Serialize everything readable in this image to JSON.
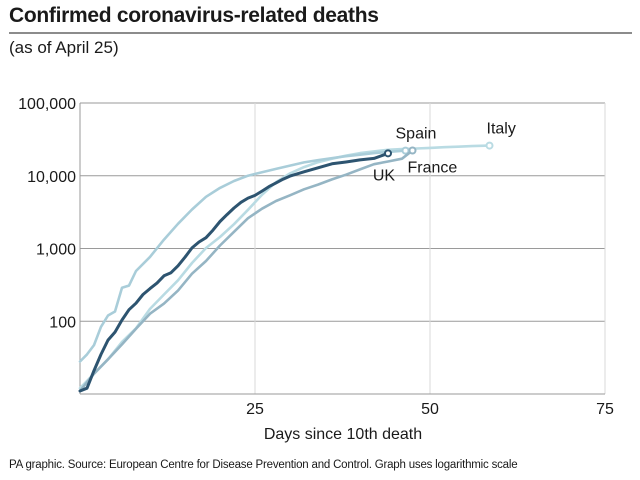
{
  "title": "Confirmed coronavirus-related deaths",
  "subtitle": "(as of April 25)",
  "footer": "PA graphic. Source: European Centre for Disease Prevention and Control. Graph uses logarithmic scale",
  "chart_data": {
    "type": "line",
    "title": "Confirmed coronavirus-related deaths",
    "subtitle": "(as of April 25)",
    "xlabel": "Days since 10th death",
    "ylabel": "",
    "y_scale": "log",
    "xlim": [
      0,
      75
    ],
    "ylim": [
      10,
      100000
    ],
    "x_ticks": [
      25,
      50,
      75
    ],
    "x_tick_labels": [
      "25",
      "50",
      "75"
    ],
    "y_ticks": [
      100,
      1000,
      10000,
      100000
    ],
    "y_tick_labels": [
      "100",
      "1,000",
      "10,000",
      "100,000"
    ],
    "grid": true,
    "series": [
      {
        "name": "Italy",
        "color": "#b9dbe3",
        "x": [
          0,
          2,
          4,
          6,
          8,
          10,
          12,
          14,
          16,
          18,
          20,
          22,
          24,
          26,
          28,
          30,
          32,
          34,
          36,
          38,
          40,
          42,
          44,
          46,
          48,
          50,
          52,
          54,
          56,
          58.5
        ],
        "y": [
          12,
          19,
          30,
          52,
          80,
          148,
          233,
          366,
          631,
          1016,
          1441,
          2158,
          3405,
          5476,
          8165,
          10779,
          13155,
          15362,
          17127,
          18849,
          20465,
          21645,
          22745,
          23227,
          23660,
          24114,
          24648,
          25085,
          25549,
          25969
        ]
      },
      {
        "name": "Spain",
        "color": "#a9cdd9",
        "x": [
          0,
          1,
          2,
          3,
          4,
          5,
          6,
          7,
          8,
          10,
          12,
          14,
          16,
          18,
          20,
          22,
          24,
          26,
          28,
          30,
          32,
          34,
          36,
          38,
          40,
          42,
          44,
          46.5
        ],
        "y": [
          28,
          35,
          47,
          84,
          120,
          136,
          288,
          309,
          491,
          767,
          1326,
          2182,
          3434,
          5138,
          6803,
          8464,
          10003,
          11198,
          12418,
          13798,
          15238,
          16353,
          17489,
          18579,
          19478,
          20453,
          21282,
          22157
        ]
      },
      {
        "name": "France",
        "color": "#95b5c4",
        "x": [
          0,
          2,
          4,
          6,
          8,
          10,
          12,
          14,
          16,
          18,
          20,
          22,
          24,
          26,
          28,
          30,
          32,
          34,
          36,
          38,
          40,
          42,
          44,
          46,
          47.5
        ],
        "y": [
          11,
          19,
          30,
          48,
          79,
          127,
          175,
          264,
          450,
          674,
          1100,
          1696,
          2606,
          3523,
          4503,
          5387,
          6507,
          7560,
          8911,
          10328,
          12210,
          14393,
          15712,
          17167,
          22245
        ]
      },
      {
        "name": "UK",
        "color": "#2d5470",
        "x": [
          0,
          1,
          2,
          3,
          4,
          5,
          6,
          7,
          8,
          9,
          10,
          11,
          12,
          13,
          14,
          15,
          16,
          17,
          18,
          19,
          20,
          21,
          22,
          23,
          24,
          25,
          26,
          27,
          28,
          29,
          30,
          32,
          34,
          36,
          38,
          40,
          42,
          44
        ],
        "y": [
          11,
          12,
          21,
          35,
          55,
          71,
          104,
          144,
          177,
          233,
          281,
          335,
          422,
          465,
          578,
          759,
          1019,
          1228,
          1408,
          1789,
          2352,
          2921,
          3605,
          4313,
          4934,
          5373,
          6159,
          7097,
          7978,
          8958,
          9875,
          11329,
          12868,
          14576,
          15464,
          16509,
          17337,
          20319
        ]
      }
    ],
    "series_labels": [
      "Spain",
      "Italy",
      "UK",
      "France"
    ]
  }
}
